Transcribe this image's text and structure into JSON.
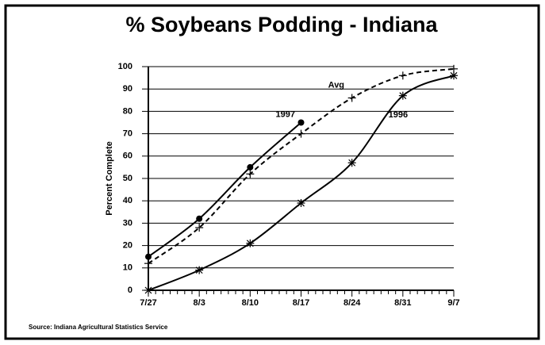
{
  "chart_data": {
    "type": "line",
    "title": "% Soybeans Podding - Indiana",
    "y_label": "Percent Complete",
    "source": "Source:  Indiana Agricultural Statistics Service",
    "categories": [
      "7/27",
      "8/3",
      "8/10",
      "8/17",
      "8/24",
      "8/31",
      "9/7"
    ],
    "series": [
      {
        "name": "1997",
        "color": "#000000",
        "dash": false,
        "marker": "circle",
        "values": [
          15,
          32,
          55,
          75,
          null,
          null,
          null
        ]
      },
      {
        "name": "Avg",
        "color": "#000000",
        "dash": true,
        "marker": "plus",
        "values": [
          12,
          28,
          52,
          70,
          86,
          96,
          99
        ]
      },
      {
        "name": "1996",
        "color": "#000000",
        "dash": false,
        "marker": "asterisk",
        "values": [
          0,
          9,
          21,
          39,
          57,
          87,
          96
        ]
      }
    ],
    "ylim": [
      0,
      100
    ],
    "yticks": [
      0,
      10,
      20,
      30,
      40,
      50,
      60,
      70,
      80,
      90,
      100
    ],
    "grid": true
  }
}
